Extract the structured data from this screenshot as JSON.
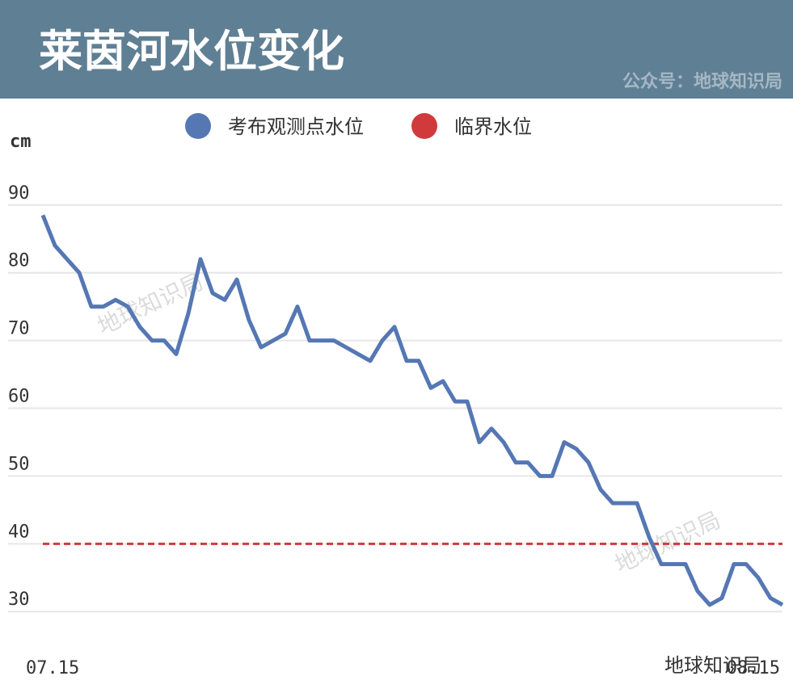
{
  "chart_data": {
    "type": "line",
    "title": "莱茵河水位变化",
    "source": "公众号：地球知识局",
    "watermark": "地球知识局",
    "y_unit": "cm",
    "categories": [
      "07.15",
      null,
      null,
      null,
      null,
      null,
      null,
      null,
      null,
      null,
      null,
      null,
      null,
      null,
      null,
      null,
      null,
      null,
      null,
      null,
      null,
      null,
      null,
      null,
      null,
      null,
      null,
      null,
      null,
      null,
      null,
      null,
      null,
      null,
      null,
      null,
      null,
      null,
      null,
      null,
      null,
      null,
      null,
      null,
      null,
      null,
      null,
      null,
      null,
      null,
      null,
      null,
      null,
      null,
      null,
      null,
      null,
      null,
      null,
      null,
      null,
      "08.15"
    ],
    "series": [
      {
        "name": "考布观测点水位",
        "color": "#5577b4",
        "values": [
          88.5,
          84,
          82,
          80,
          75,
          75,
          76,
          75,
          72,
          70,
          70,
          68,
          74,
          82,
          77,
          76,
          79,
          73,
          69,
          70,
          71,
          75,
          70,
          70,
          70,
          69,
          68,
          67,
          70,
          72,
          67,
          67,
          63,
          64,
          61,
          61,
          55,
          57,
          55,
          52,
          52,
          50,
          50,
          55,
          54,
          52,
          48,
          46,
          46,
          46,
          41,
          37,
          37,
          37,
          33,
          31,
          32,
          37,
          37,
          35,
          32,
          31
        ]
      }
    ],
    "reference_line": {
      "name": "临界水位",
      "color": "#d03a3c",
      "value": 40
    },
    "ylim": [
      28,
      92
    ],
    "yticks": [
      30,
      40,
      50,
      60,
      70,
      80,
      90
    ],
    "grid": true
  }
}
